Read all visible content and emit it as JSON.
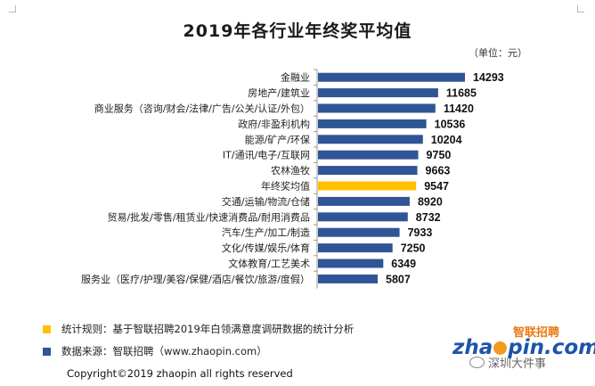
{
  "chart_data": {
    "type": "bar",
    "orientation": "horizontal",
    "title": "2019年各行业年终奖平均值",
    "unit": "（单位：元）",
    "categories": [
      "金融业",
      "房地产/建筑业",
      "商业服务（咨询/财会/法律/广告/公关/认证/外包）",
      "政府/非盈利机构",
      "能源/矿产/环保",
      "IT/通讯/电子/互联网",
      "农林渔牧",
      "年终奖均值",
      "交通/运输/物流/仓储",
      "贸易/批发/零售/租赁业/快速消费品/耐用消费品",
      "汽车/生产/加工/制造",
      "文化/传媒/娱乐/体育",
      "文体教育/工艺美术",
      "服务业（医疗/护理/美容/保健/酒店/餐饮/旅游/度假）"
    ],
    "values": [
      14293,
      11685,
      11420,
      10536,
      10204,
      9750,
      9663,
      9547,
      8920,
      8732,
      7933,
      7250,
      6349,
      5807
    ],
    "value_labels": [
      "14293",
      "11685",
      "11420",
      "10536",
      "10204",
      "9750",
      "9663",
      "9547",
      "8920",
      "8732",
      "7933",
      "7250",
      "6349",
      "5807"
    ],
    "highlight_category": "年终奖均值",
    "bar_color": "#2f5597",
    "highlight_color": "#ffc000",
    "xlim": [
      0,
      14293
    ],
    "grid": false
  },
  "legend": [
    {
      "text": "统计规则：基于智联招聘2019年白领满意度调研数据的统计分析",
      "color": "#ffc000"
    },
    {
      "text": "数据来源：智联招聘（www.zhaopin.com）",
      "color": "#2f5597"
    }
  ],
  "copyright": "Copyright©2019 zhaopin all rights reserved",
  "logo": {
    "sub": "智联招聘",
    "main_left": "zha",
    "main_right": "pin.com"
  },
  "watermark": "深圳大件事",
  "icons": {
    "wechat": "wechat-icon"
  }
}
